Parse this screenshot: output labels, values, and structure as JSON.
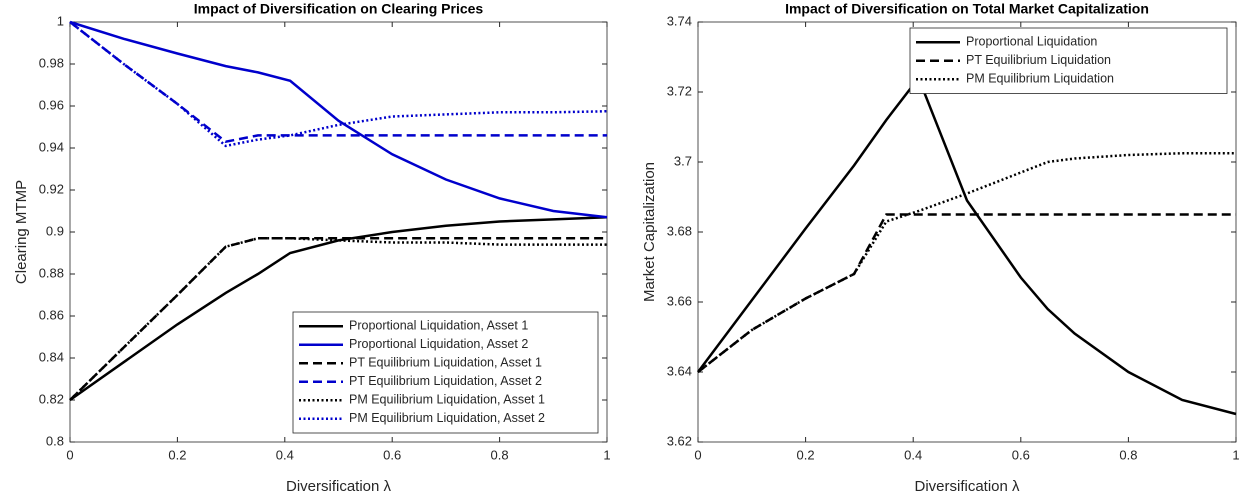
{
  "chart_data": [
    {
      "type": "line",
      "title": "Impact of Diversification on Clearing Prices",
      "xlabel": "Diversification λ",
      "ylabel": "Clearing MTMP",
      "x": [
        0,
        0.1,
        0.2,
        0.29,
        0.35,
        0.41,
        0.5,
        0.6,
        0.7,
        0.8,
        0.9,
        1
      ],
      "xlim": [
        0,
        1
      ],
      "xticks": [
        0,
        0.2,
        0.4,
        0.6,
        0.8,
        1
      ],
      "ylim": [
        0.8,
        1
      ],
      "yticks": [
        0.8,
        0.82,
        0.84,
        0.86,
        0.88,
        0.9,
        0.92,
        0.94,
        0.96,
        0.98,
        1
      ],
      "legend": "lower right",
      "series": [
        {
          "name": "Proportional Liquidation, Asset 1",
          "color": "#000000",
          "dash": "solid",
          "values": [
            0.82,
            0.838,
            0.856,
            0.871,
            0.88,
            0.89,
            0.896,
            0.9,
            0.903,
            0.905,
            0.906,
            0.907
          ]
        },
        {
          "name": "Proportional Liquidation, Asset 2",
          "color": "#0000cc",
          "dash": "solid",
          "values": [
            1,
            0.992,
            0.985,
            0.979,
            0.976,
            0.972,
            0.953,
            0.937,
            0.925,
            0.916,
            0.91,
            0.907
          ]
        },
        {
          "name": "PT Equilibrium Liquidation, Asset 1",
          "color": "#000000",
          "dash": "dashed",
          "values": [
            0.82,
            0.845,
            0.87,
            0.893,
            0.897,
            0.897,
            0.897,
            0.897,
            0.897,
            0.897,
            0.897,
            0.897
          ]
        },
        {
          "name": "PT Equilibrium Liquidation, Asset 2",
          "color": "#0000cc",
          "dash": "dashed",
          "values": [
            1,
            0.98,
            0.961,
            0.943,
            0.946,
            0.946,
            0.946,
            0.946,
            0.946,
            0.946,
            0.946,
            0.946
          ]
        },
        {
          "name": "PM Equilibrium Liquidation, Asset 1",
          "color": "#000000",
          "dash": "dotted",
          "values": [
            0.82,
            0.845,
            0.87,
            0.893,
            0.897,
            0.897,
            0.896,
            0.895,
            0.895,
            0.894,
            0.894,
            0.894
          ]
        },
        {
          "name": "PM Equilibrium Liquidation, Asset 2",
          "color": "#0000cc",
          "dash": "dotted",
          "values": [
            1,
            0.98,
            0.961,
            0.941,
            0.944,
            0.946,
            0.951,
            0.955,
            0.956,
            0.957,
            0.957,
            0.9575
          ]
        }
      ]
    },
    {
      "type": "line",
      "title": "Impact of Diversification on Total Market Capitalization",
      "xlabel": "Diversification λ",
      "ylabel": "Market Capitalization",
      "x": [
        0,
        0.1,
        0.2,
        0.29,
        0.35,
        0.41,
        0.5,
        0.6,
        0.65,
        0.7,
        0.8,
        0.9,
        1
      ],
      "xlim": [
        0,
        1
      ],
      "xticks": [
        0,
        0.2,
        0.4,
        0.6,
        0.8,
        1
      ],
      "ylim": [
        3.62,
        3.74
      ],
      "yticks": [
        3.62,
        3.64,
        3.66,
        3.68,
        3.7,
        3.72,
        3.74
      ],
      "legend": "upper right",
      "series": [
        {
          "name": "Proportional Liquidation",
          "color": "#000000",
          "dash": "solid",
          "values": [
            3.64,
            3.6605,
            3.681,
            3.699,
            3.712,
            3.724,
            3.689,
            3.667,
            3.658,
            3.651,
            3.64,
            3.632,
            3.628
          ]
        },
        {
          "name": "PT Equilibrium Liquidation",
          "color": "#000000",
          "dash": "dashed",
          "values": [
            3.64,
            3.652,
            3.661,
            3.668,
            3.685,
            3.685,
            3.685,
            3.685,
            3.685,
            3.685,
            3.685,
            3.685,
            3.685
          ]
        },
        {
          "name": "PM Equilibrium Liquidation",
          "color": "#000000",
          "dash": "dotted",
          "values": [
            3.64,
            3.652,
            3.661,
            3.668,
            3.683,
            3.686,
            3.691,
            3.697,
            3.7,
            3.701,
            3.702,
            3.7025,
            3.7025
          ]
        }
      ]
    }
  ]
}
